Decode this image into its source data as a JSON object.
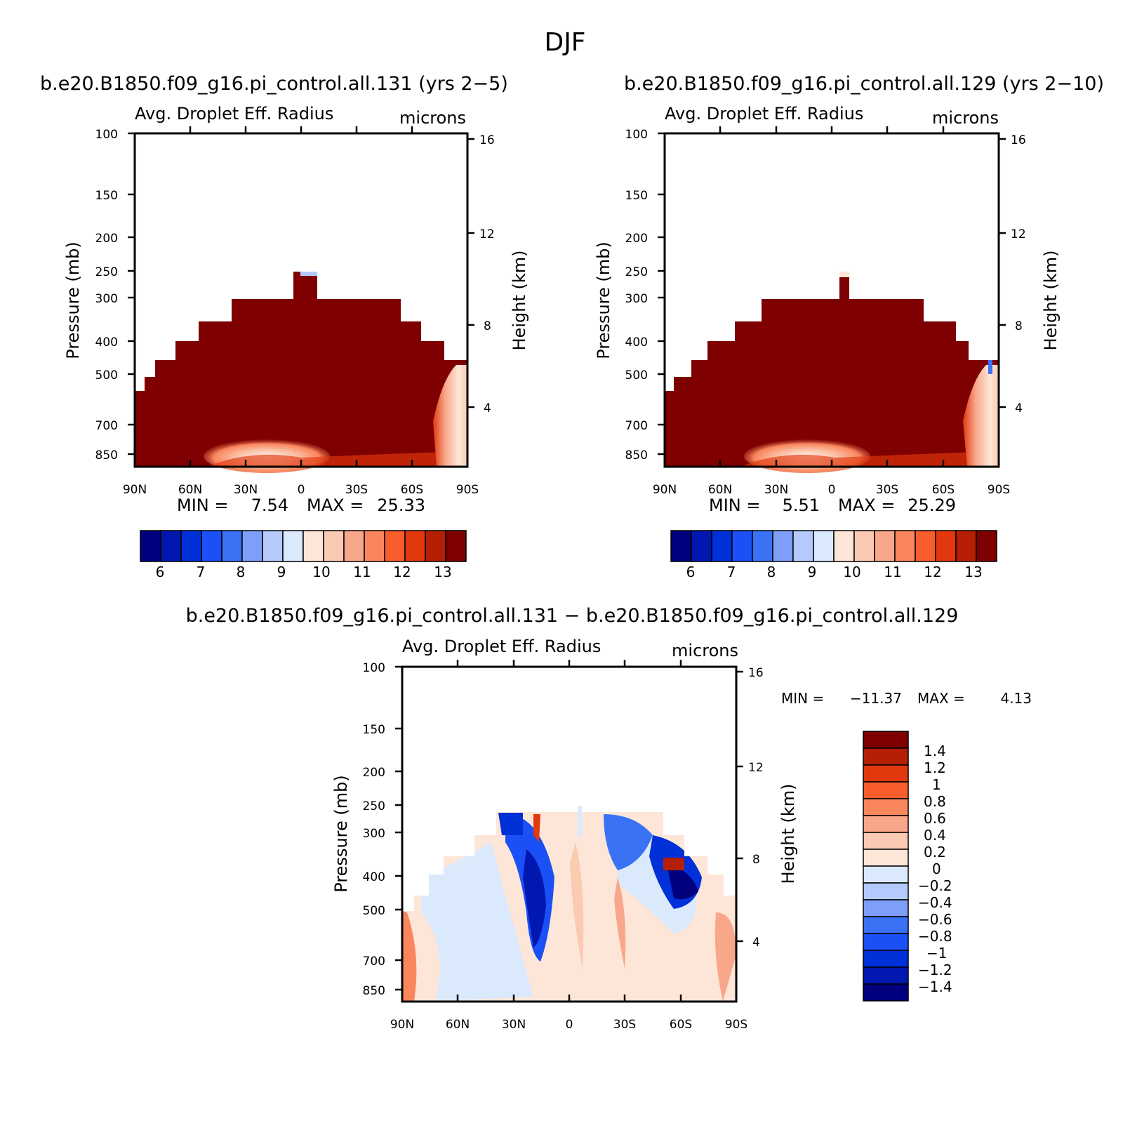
{
  "figure": {
    "title": "DJF",
    "top_left_title": "b.e20.B1850.f09_g16.pi_control.all.131 (yrs 2−5)",
    "top_right_title": "b.e20.B1850.f09_g16.pi_control.all.129 (yrs 2−10)",
    "diff_title": "b.e20.B1850.f09_g16.pi_control.all.131 − b.e20.B1850.f09_g16.pi_control.all.129"
  },
  "colors": {
    "full_scale": [
      "#00007f",
      "#0018b0",
      "#0030d8",
      "#1a50f5",
      "#3a72f5",
      "#7e9ff7",
      "#b5cafc",
      "#dbe9fc",
      "#fde6d8",
      "#fbcab2",
      "#f9a78a",
      "#f9865c",
      "#f95d2c",
      "#e2380e",
      "#b41f06",
      "#7e0000"
    ],
    "diff_scale": [
      "#00007f",
      "#0018b0",
      "#0030d8",
      "#1a50f5",
      "#3a72f5",
      "#7e9ff7",
      "#b5cafc",
      "#dbe9fc",
      "#fde6d8",
      "#fbcab2",
      "#f9a78a",
      "#f9865c",
      "#f95d2c",
      "#e2380e",
      "#b41f06",
      "#7e0000"
    ]
  },
  "chart_data": [
    {
      "type": "heatmap",
      "panel": "top-left",
      "title_left": "Avg. Droplet Eff. Radius",
      "title_right": "microns",
      "xlabel": "",
      "ylabel": "Pressure (mb)",
      "ylabel_right": "Height (km)",
      "x_ticks": [
        "90N",
        "60N",
        "30N",
        "0",
        "30S",
        "60S",
        "90S"
      ],
      "y_ticks": [
        "100",
        "150",
        "200",
        "250",
        "300",
        "400",
        "500",
        "700",
        "850"
      ],
      "y2_ticks": [
        "16",
        "12",
        "8",
        "4"
      ],
      "min_label": "MIN =",
      "min_value": "7.54",
      "max_label": "MAX =",
      "max_value": "25.33",
      "colorbar_labels": [
        "6",
        "7",
        "8",
        "9",
        "10",
        "11",
        "12",
        "13"
      ]
    },
    {
      "type": "heatmap",
      "panel": "top-right",
      "title_left": "Avg. Droplet Eff. Radius",
      "title_right": "microns",
      "xlabel": "",
      "ylabel": "Pressure (mb)",
      "ylabel_right": "Height (km)",
      "x_ticks": [
        "90N",
        "60N",
        "30N",
        "0",
        "30S",
        "60S",
        "90S"
      ],
      "y_ticks": [
        "100",
        "150",
        "200",
        "250",
        "300",
        "400",
        "500",
        "700",
        "850"
      ],
      "y2_ticks": [
        "16",
        "12",
        "8",
        "4"
      ],
      "min_label": "MIN =",
      "min_value": "5.51",
      "max_label": "MAX =",
      "max_value": "25.29",
      "colorbar_labels": [
        "6",
        "7",
        "8",
        "9",
        "10",
        "11",
        "12",
        "13"
      ]
    },
    {
      "type": "heatmap",
      "panel": "bottom-difference",
      "title_left": "Avg. Droplet Eff. Radius",
      "title_right": "microns",
      "xlabel": "",
      "ylabel": "Pressure (mb)",
      "ylabel_right": "Height (km)",
      "x_ticks": [
        "90N",
        "60N",
        "30N",
        "0",
        "30S",
        "60S",
        "90S"
      ],
      "y_ticks": [
        "100",
        "150",
        "200",
        "250",
        "300",
        "400",
        "500",
        "700",
        "850"
      ],
      "y2_ticks": [
        "16",
        "12",
        "8",
        "4"
      ],
      "min_label": "MIN =",
      "min_value": "−11.37",
      "max_label": "MAX =",
      "max_value": "4.13",
      "colorbar_labels": [
        "1.4",
        "1.2",
        "1",
        "0.8",
        "0.6",
        "0.4",
        "0.2",
        "0",
        "−0.2",
        "−0.4",
        "−0.6",
        "−0.8",
        "−1",
        "−1.2",
        "−1.4"
      ]
    }
  ]
}
